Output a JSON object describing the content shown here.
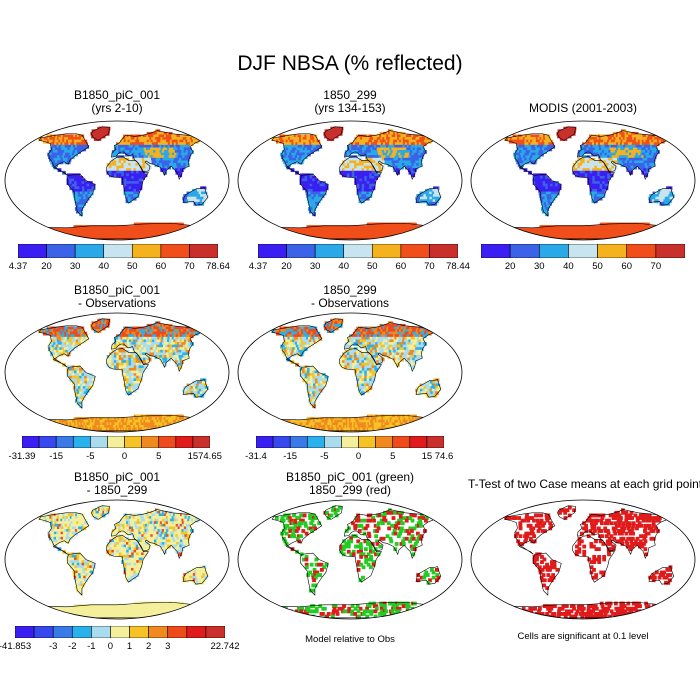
{
  "main_title": "DJF NBSA (% reflected)",
  "panels": [
    {
      "id": "p1",
      "title1": "B1850_piC_001",
      "title2": "(yrs 2-10)",
      "style": "abs"
    },
    {
      "id": "p2",
      "title1": "1850_299",
      "title2": "(yrs 134-153)",
      "style": "abs"
    },
    {
      "id": "p3",
      "title1": "MODIS (2001-2003)",
      "title2": "",
      "style": "abs"
    },
    {
      "id": "p4",
      "title1": "B1850_piC_001",
      "title2": "- Observations",
      "style": "diff"
    },
    {
      "id": "p5",
      "title1": "1850_299",
      "title2": "- Observations",
      "style": "diff"
    },
    {
      "id": "p6",
      "title1": "B1850_piC_001",
      "title2": "- 1850_299",
      "style": "diff2"
    },
    {
      "id": "p7",
      "title1": "B1850_piC_001 (green)",
      "title2": "1850_299 (red)",
      "style": "compare"
    },
    {
      "id": "p8",
      "title1": "T-Test of two Case means at each grid point",
      "title2": "",
      "style": "ttest"
    }
  ],
  "colorbars": [
    {
      "id": "cb1",
      "colors": [
        "#3b1ff2",
        "#3a63e8",
        "#2aa8e8",
        "#c8e4ee",
        "#f5b21f",
        "#f04e1b",
        "#c9302c"
      ],
      "labels": [
        "4.37",
        "20",
        "30",
        "40",
        "50",
        "60",
        "70",
        "78.64"
      ]
    },
    {
      "id": "cb2",
      "colors": [
        "#3b1ff2",
        "#3a63e8",
        "#2aa8e8",
        "#c8e4ee",
        "#f5b21f",
        "#f04e1b",
        "#c9302c"
      ],
      "labels": [
        "4.37",
        "20",
        "30",
        "40",
        "50",
        "60",
        "70",
        "78.44"
      ]
    },
    {
      "id": "cb3",
      "colors": [
        "#3b1ff2",
        "#3a63e8",
        "#2aa8e8",
        "#c8e4ee",
        "#f5b21f",
        "#f04e1b",
        "#c9302c"
      ],
      "labels": [
        "",
        "20",
        "30",
        "40",
        "50",
        "60",
        "70",
        ""
      ]
    },
    {
      "id": "cb4",
      "colors": [
        "#3b1ff2",
        "#3848ef",
        "#3a7ae8",
        "#2ab0ea",
        "#a8dcee",
        "#f4ef9a",
        "#f5c325",
        "#f08a20",
        "#ef4a1c",
        "#e01b1b",
        "#c9302c"
      ],
      "labels": [
        "-31.39",
        "",
        "-15",
        "",
        "-5",
        "",
        "0",
        "",
        "5",
        "",
        "15",
        "74.65"
      ]
    },
    {
      "id": "cb5",
      "colors": [
        "#3b1ff2",
        "#3848ef",
        "#3a7ae8",
        "#2ab0ea",
        "#a8dcee",
        "#f4ef9a",
        "#f5c325",
        "#f08a20",
        "#ef4a1c",
        "#e01b1b",
        "#c9302c"
      ],
      "labels": [
        "-31.4",
        "",
        "-15",
        "",
        "-5",
        "",
        "0",
        "",
        "5",
        "",
        "15",
        "74.6"
      ]
    },
    {
      "id": "cb6",
      "colors": [
        "#3b1ff2",
        "#3848ef",
        "#3a7ae8",
        "#2ab0ea",
        "#a8dcee",
        "#f4ef9a",
        "#f5c325",
        "#f08a20",
        "#ef4a1c",
        "#e01b1b",
        "#c9302c"
      ],
      "labels": [
        "-41.853",
        "",
        "-3",
        "-2",
        "-1",
        "0",
        "1",
        "2",
        "3",
        "",
        "",
        "22.742"
      ]
    }
  ],
  "notes": {
    "compare": "Model relative to Obs",
    "ttest": "Cells are significant at 0.1 level"
  },
  "palettes": {
    "abs": [
      "#3b1ff2",
      "#3a63e8",
      "#2aa8e8",
      "#c8e4ee",
      "#f5b21f",
      "#f04e1b",
      "#c9302c"
    ],
    "diff": [
      "#3a7ae8",
      "#2ab0ea",
      "#a8dcee",
      "#f4ef9a",
      "#f5c325",
      "#f08a20",
      "#ef4a1c"
    ],
    "green": "#22cc22",
    "red": "#e01b1b"
  }
}
